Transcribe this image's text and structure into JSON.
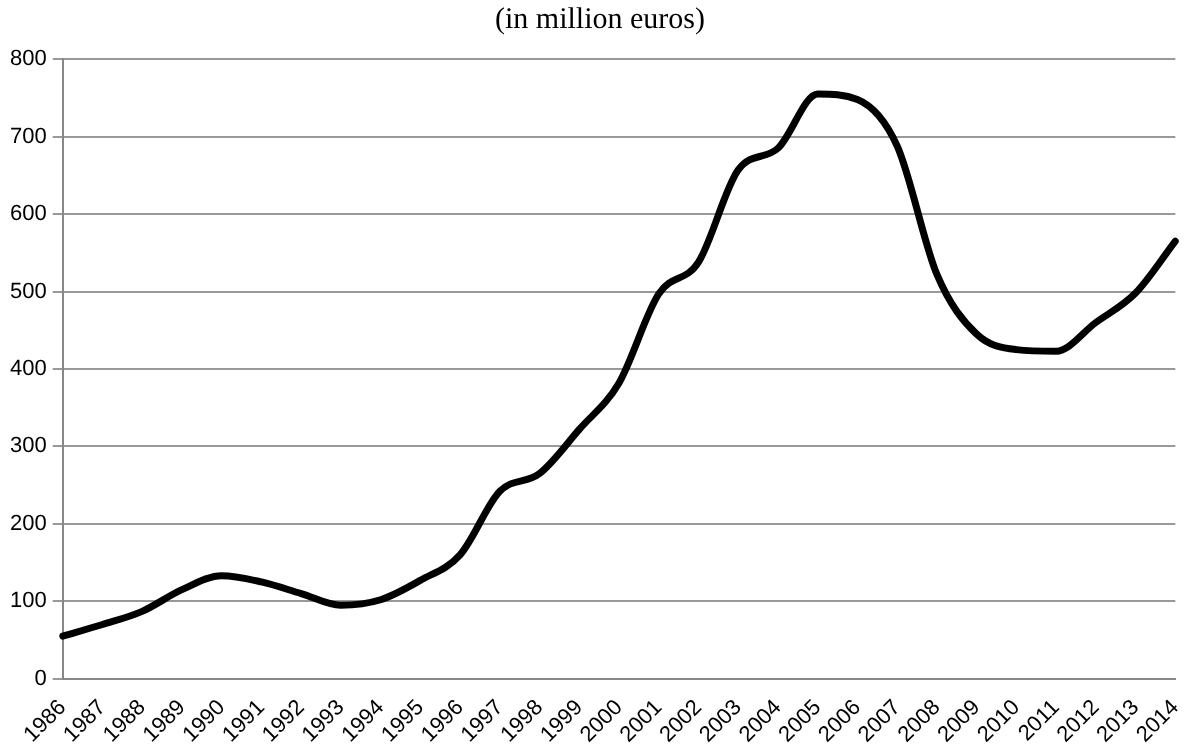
{
  "chart_data": {
    "type": "line",
    "title": "(in million euros)",
    "categories": [
      "1986",
      "1987",
      "1988",
      "1989",
      "1990",
      "1991",
      "1992",
      "1993",
      "1994",
      "1995",
      "1996",
      "1997",
      "1998",
      "1999",
      "2000",
      "2001",
      "2002",
      "2003",
      "2004",
      "2005",
      "2006",
      "2007",
      "2008",
      "2009",
      "2010",
      "2011",
      "2012",
      "2013",
      "2014"
    ],
    "series": [
      {
        "color": "#000000",
        "values": [
          55,
          70,
          87,
          115,
          133,
          125,
          110,
          95,
          102,
          127,
          160,
          242,
          265,
          322,
          382,
          497,
          538,
          657,
          685,
          755,
          748,
          688,
          522,
          445,
          425,
          423,
          460,
          498,
          565
        ]
      }
    ],
    "ylim": [
      0,
      800
    ],
    "yticks": [
      0,
      100,
      200,
      300,
      400,
      500,
      600,
      700,
      800
    ],
    "grid": "y",
    "legend": false,
    "marker": "none",
    "line_style": "solid"
  }
}
